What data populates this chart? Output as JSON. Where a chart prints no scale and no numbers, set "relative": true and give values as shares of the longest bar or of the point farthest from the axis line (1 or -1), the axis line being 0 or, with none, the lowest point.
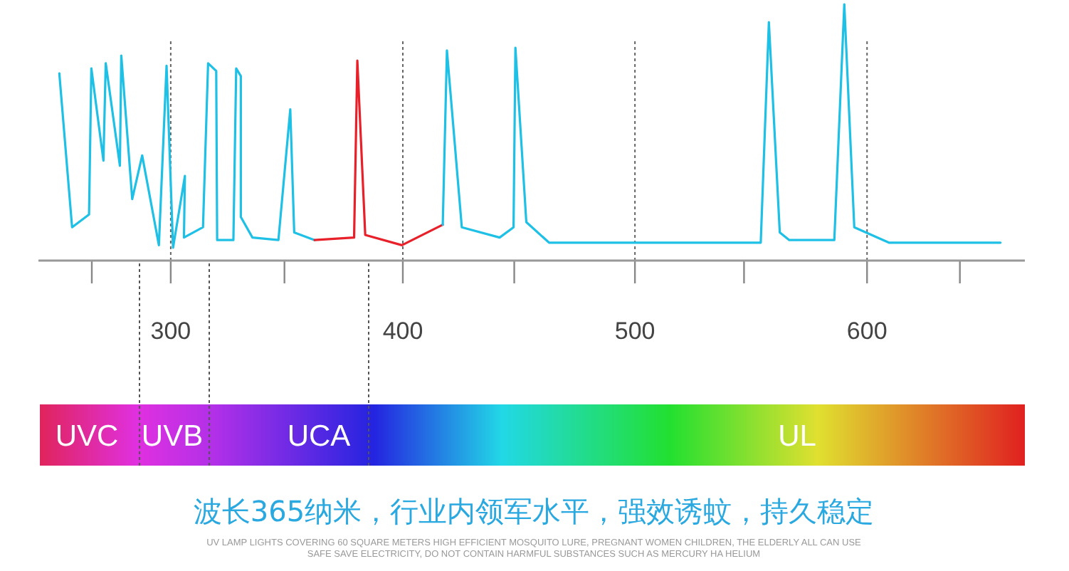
{
  "chart_data": {
    "type": "line",
    "relative": true,
    "series": [
      {
        "color": "#1ec0e6",
        "x": [
          252,
          257.5,
          264.8,
          265.8,
          271,
          272,
          278.1,
          278.7,
          283.4,
          287.7,
          294.9,
          298.2,
          301,
          306.1,
          305.7,
          313.9,
          316.1,
          319.6,
          320,
          327,
          328.2,
          330.2,
          330.2,
          335.2,
          346.4,
          351.5,
          353.2,
          362
        ],
        "values": [
          0.73,
          0.13,
          0.18,
          0.75,
          0.39,
          0.77,
          0.37,
          0.8,
          0.24,
          0.41,
          0.06,
          0.76,
          0.05,
          0.33,
          0.09,
          0.13,
          0.77,
          0.74,
          0.08,
          0.08,
          0.75,
          0.72,
          0.17,
          0.09,
          0.08,
          0.59,
          0.11,
          0.08
        ]
      },
      {
        "color": "#e8202a",
        "x": [
          362,
          379,
          380.4,
          383.8,
          399.6,
          417.2
        ],
        "values": [
          0.08,
          0.09,
          0.78,
          0.1,
          0.06,
          0.14
        ]
      },
      {
        "color": "#1ec0e6",
        "x": [
          417.2,
          419,
          425.4,
          441.7,
          447.7,
          448.5,
          453.2,
          463,
          554.2,
          557.7,
          562.4,
          566.5,
          585.9,
          590.2,
          594.5,
          609.4,
          657.5
        ],
        "values": [
          0.14,
          0.82,
          0.13,
          0.09,
          0.13,
          0.83,
          0.15,
          0.07,
          0.07,
          0.93,
          0.11,
          0.08,
          0.08,
          1,
          0.13,
          0.07,
          0.07
        ]
      }
    ],
    "xlim": [
      243,
      668
    ],
    "xticks": [
      {
        "value": 266,
        "label": null
      },
      300,
      {
        "value": 349,
        "label": null
      },
      400,
      {
        "value": 448,
        "label": null
      },
      500,
      {
        "value": 547,
        "label": null
      },
      600,
      {
        "value": 640,
        "label": null
      }
    ],
    "grid": "x",
    "annotations": [
      "UVC",
      "UVB",
      "UCA",
      "UL",
      "波长365纳米，行业内领军水平，强效诱蚊，持久稳定",
      "UV LAMP LIGHTS COVERING 60 SQUARE METERS HIGH EFFICIENT MOSQUITO LURE, PREGNANT WOMEN CHILDREN, THE ELDERLY ALL CAN USE",
      "SAFE SAVE ELECTRICITY, DO NOT CONTAIN HARMFUL SUBSTANCES SUCH AS MERCURY HA HELIUM"
    ]
  }
}
